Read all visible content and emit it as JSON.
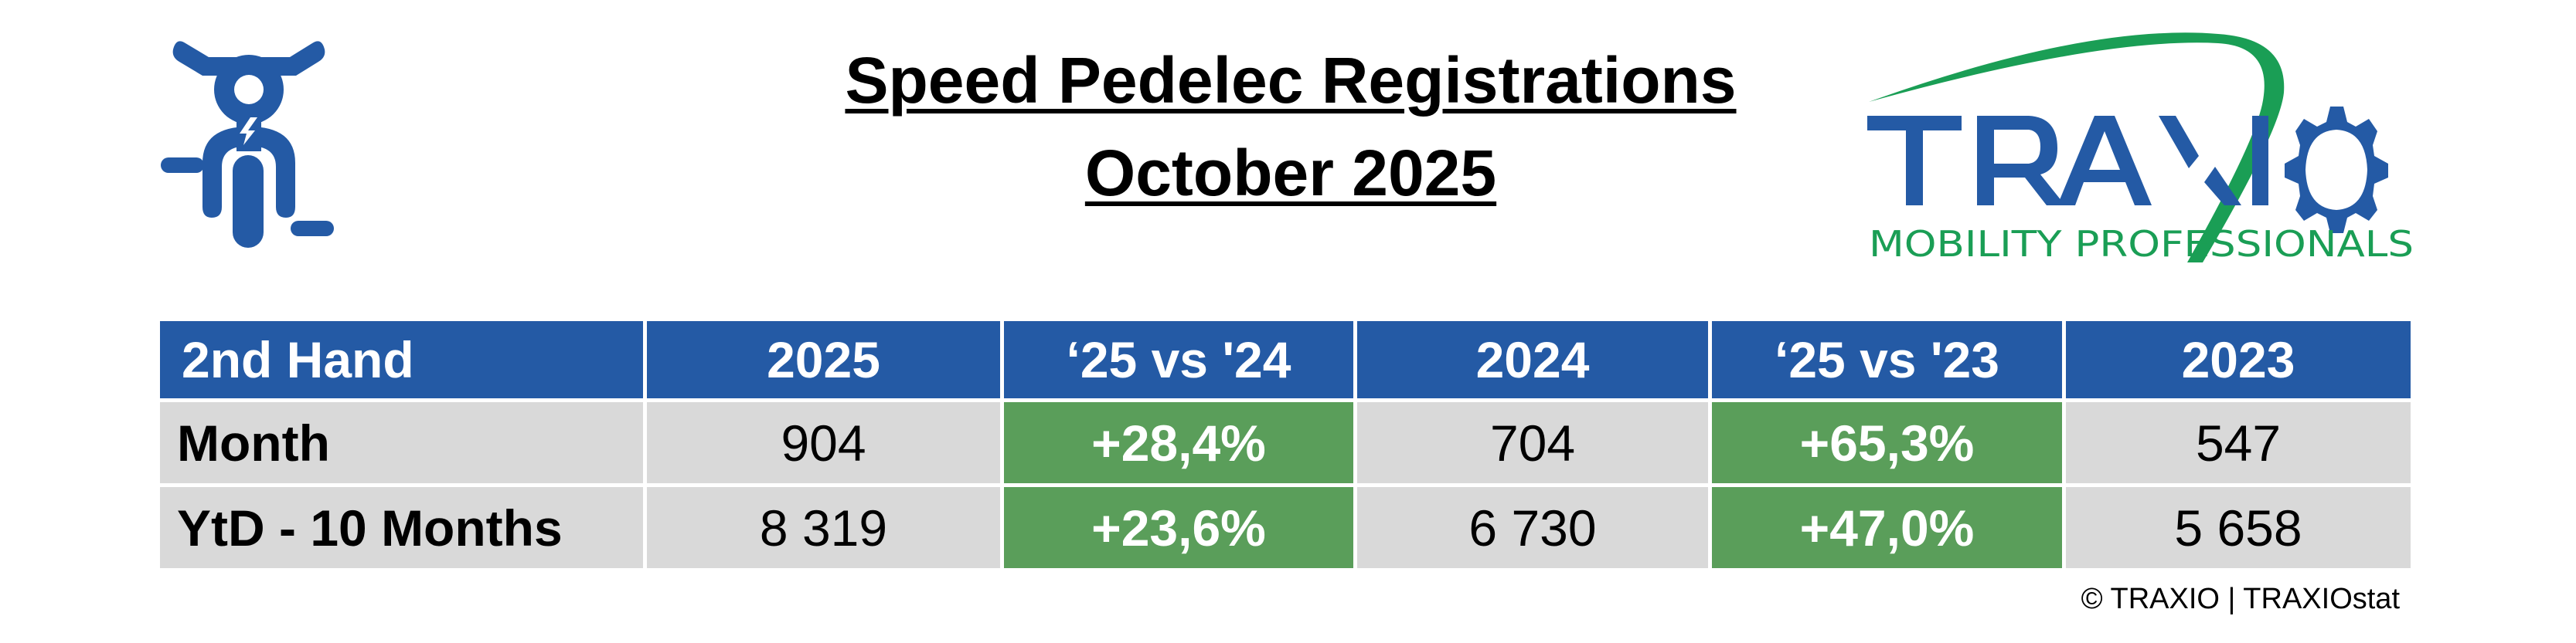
{
  "title": {
    "line1": "Speed Pedelec Registrations",
    "line2": "October 2025"
  },
  "icon": {
    "name": "speed-pedelec-icon",
    "color": "#245AA5"
  },
  "logo": {
    "name": "TRAXIO",
    "tagline": "MOBILITY PROFESSIONALS",
    "blue": "#245AA5",
    "green": "#1A9E55"
  },
  "table": {
    "headers": [
      "2nd Hand",
      "2025",
      "‘25 vs '24",
      "2024",
      "‘25 vs '23",
      "2023"
    ],
    "rows": [
      {
        "label": "Month",
        "values": [
          "904",
          "+28,4%",
          "704",
          "+65,3%",
          "547"
        ]
      },
      {
        "label": "YtD - 10 Months",
        "values": [
          "8 319",
          "+23,6%",
          "6 730",
          "+47,0%",
          "5 658"
        ]
      }
    ],
    "colors": {
      "header": "#245AA5",
      "cell": "#D9D9D9",
      "positive": "#5A9E5A"
    }
  },
  "footer": {
    "copyright": "© TRAXIO | TRAXIOstat"
  }
}
